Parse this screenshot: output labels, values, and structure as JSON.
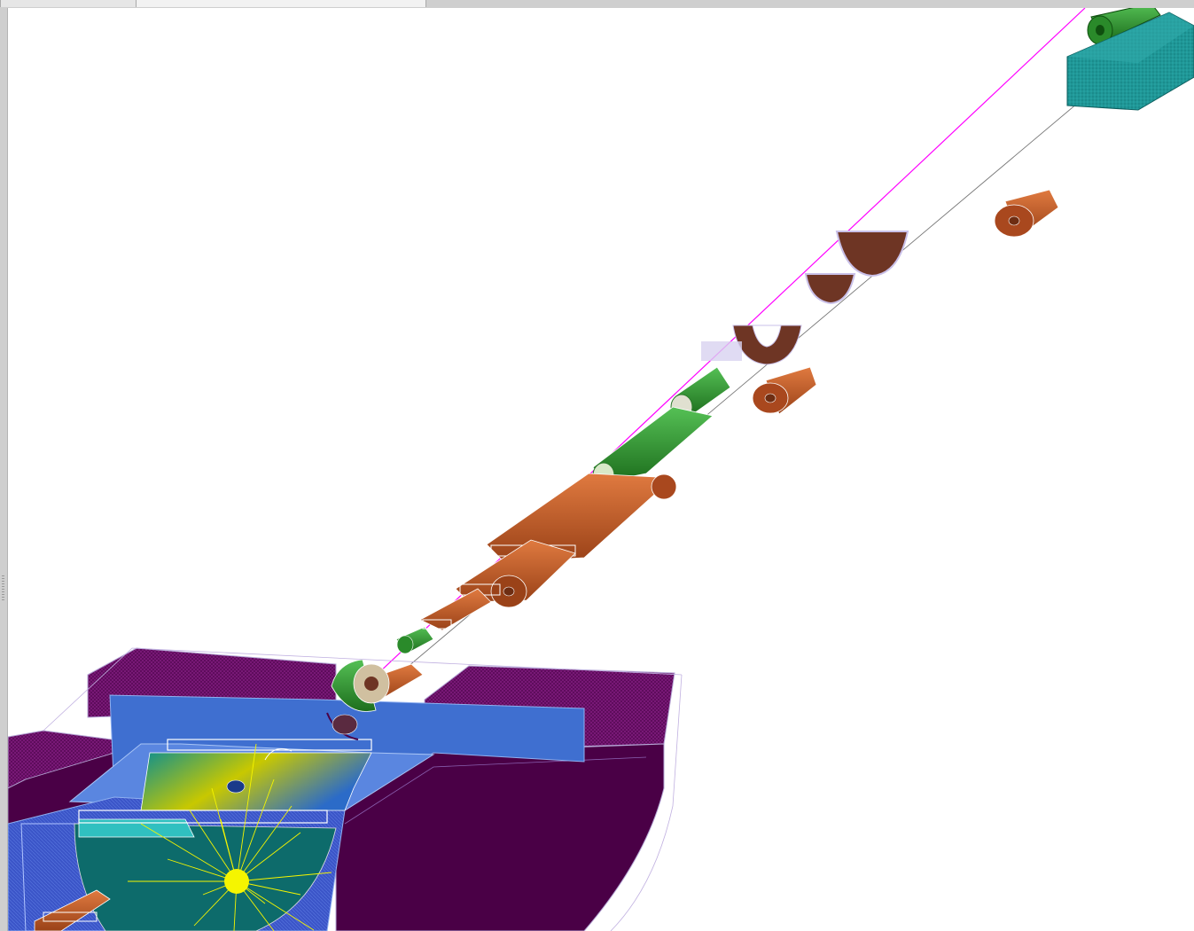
{
  "window": {
    "tabs": [
      {
        "label": ""
      },
      {
        "label": ""
      }
    ]
  },
  "viewer": {
    "scene": "detector-geometry-3d-view",
    "colors": {
      "background": "#ffffff",
      "magnet_purple": "#4a0046",
      "magnet_purple_hatch": "#7a1a78",
      "inner_blue": "#3f6fd0",
      "copper": "#c8602a",
      "dark_copper": "#6e3524",
      "green_tube": "#2f9a2f",
      "teal_block": "#1a8c8c",
      "track_yellow": "#f5f500",
      "beam_magenta": "#ff00ff",
      "beam_gray": "#777777"
    }
  }
}
